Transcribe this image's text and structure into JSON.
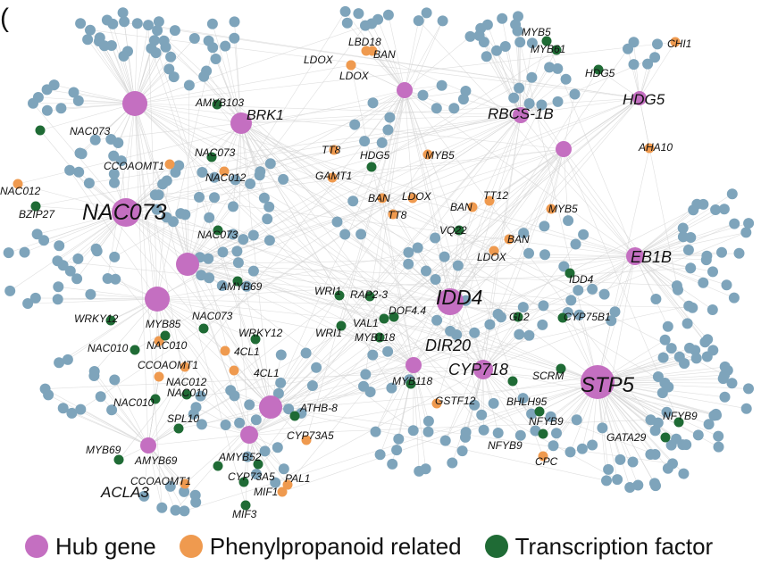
{
  "panel_mark": "(",
  "colors": {
    "hub": "#c46fc1",
    "phenyl": "#ef9a4f",
    "tf": "#1f6b35",
    "other": "#7ea4bb",
    "edge": "#d4d4d4"
  },
  "legend": [
    {
      "label": "Hub gene",
      "color_key": "hub"
    },
    {
      "label": "Phenylpropanoid related",
      "color_key": "phenyl"
    },
    {
      "label": "Transcription factor",
      "color_key": "tf"
    }
  ],
  "hubs": [
    {
      "label": "BRK1"
    },
    {
      "label": "NAC073"
    },
    {
      "label": ""
    },
    {
      "label": ""
    },
    {
      "label": ""
    },
    {
      "label": ""
    },
    {
      "label": "ACLA3"
    },
    {
      "label": ""
    },
    {
      "label": "RBCS-1B"
    },
    {
      "label": ""
    },
    {
      "label": "HDG5"
    },
    {
      "label": "EB1B"
    },
    {
      "label": "IDD4"
    },
    {
      "label": "DIR20"
    },
    {
      "label": "CYP718"
    },
    {
      "label": "STP5"
    },
    {
      "label": ""
    }
  ],
  "phenyl_nodes": [
    {
      "label": "LBD18"
    },
    {
      "label": "BAN"
    },
    {
      "label": "LDOX"
    },
    {
      "label": "LDOX"
    },
    {
      "label": "CHI1"
    },
    {
      "label": "TT8"
    },
    {
      "label": "MYB5"
    },
    {
      "label": "AHA10"
    },
    {
      "label": "GAMT1"
    },
    {
      "label": "BAN"
    },
    {
      "label": "LDOX"
    },
    {
      "label": "TT8"
    },
    {
      "label": "TT12"
    },
    {
      "label": "BAN"
    },
    {
      "label": "MYB5"
    },
    {
      "label": "BAN"
    },
    {
      "label": "LDOX"
    },
    {
      "label": "CCOAOMT1"
    },
    {
      "label": "NAC012"
    },
    {
      "label": "NAC012"
    },
    {
      "label": "NAC010"
    },
    {
      "label": "CCOAOMT1"
    },
    {
      "label": "4CL1"
    },
    {
      "label": "4CL1"
    },
    {
      "label": "NAC012"
    },
    {
      "label": "CYP73A5"
    },
    {
      "label": "CCOAOMT1"
    },
    {
      "label": "PAL1"
    },
    {
      "label": "MIF1"
    },
    {
      "label": "GSTF12"
    },
    {
      "label": "CPC"
    }
  ],
  "tf_nodes": [
    {
      "label": "AMYB103"
    },
    {
      "label": "NAC073"
    },
    {
      "label": "NAC073"
    },
    {
      "label": "BZIP27"
    },
    {
      "label": "NAC073"
    },
    {
      "label": "AMYB69"
    },
    {
      "label": "WRKY12"
    },
    {
      "label": "MYB85"
    },
    {
      "label": "NAC073"
    },
    {
      "label": "WRKY12"
    },
    {
      "label": "NAC010"
    },
    {
      "label": "NAC010"
    },
    {
      "label": "NAC010"
    },
    {
      "label": "SPL10"
    },
    {
      "label": "ATHB-8"
    },
    {
      "label": "MYB69"
    },
    {
      "label": "AMYB69"
    },
    {
      "label": "AMYB52"
    },
    {
      "label": "CYP73A5"
    },
    {
      "label": "MIF3"
    },
    {
      "label": "MYB61"
    },
    {
      "label": "HDG5"
    },
    {
      "label": "HDG5"
    },
    {
      "label": "MYB5"
    },
    {
      "label": "WRI1"
    },
    {
      "label": "RAP2-3"
    },
    {
      "label": "VAL1"
    },
    {
      "label": "DOF4.4"
    },
    {
      "label": "WRI1"
    },
    {
      "label": "MYB118"
    },
    {
      "label": "VQ22"
    },
    {
      "label": "IDD4"
    },
    {
      "label": "GL2"
    },
    {
      "label": "CYP75B1"
    },
    {
      "label": "MYB118"
    },
    {
      "label": "SCRM"
    },
    {
      "label": "BHLH95"
    },
    {
      "label": "NFYB9"
    },
    {
      "label": "NFYB9"
    },
    {
      "label": "NFYB9"
    },
    {
      "label": "GATA29"
    }
  ]
}
